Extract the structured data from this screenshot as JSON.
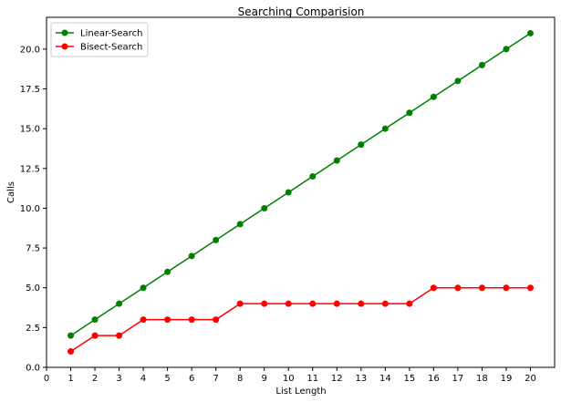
{
  "chart_data": {
    "type": "line",
    "title": "Searching Comparision",
    "xlabel": "List Length",
    "ylabel": "Calls",
    "xlim": [
      0,
      21
    ],
    "ylim": [
      0,
      22
    ],
    "xticks": [
      "0",
      "1",
      "2",
      "3",
      "4",
      "5",
      "6",
      "7",
      "8",
      "9",
      "10",
      "11",
      "12",
      "13",
      "14",
      "15",
      "16",
      "17",
      "18",
      "19",
      "20"
    ],
    "yticks": [
      "0.0",
      "2.5",
      "5.0",
      "7.5",
      "10.0",
      "12.5",
      "15.0",
      "17.5",
      "20.0"
    ],
    "grid": false,
    "legend_position": "upper-left",
    "x": [
      1,
      2,
      3,
      4,
      5,
      6,
      7,
      8,
      9,
      10,
      11,
      12,
      13,
      14,
      15,
      16,
      17,
      18,
      19,
      20
    ],
    "series": [
      {
        "name": "Linear-Search",
        "color": "#008000",
        "marker": "circle",
        "values": [
          2,
          3,
          4,
          5,
          6,
          7,
          8,
          9,
          10,
          11,
          12,
          13,
          14,
          15,
          16,
          17,
          18,
          19,
          20,
          21
        ]
      },
      {
        "name": "Bisect-Search",
        "color": "#ff0000",
        "marker": "circle",
        "values": [
          1,
          2,
          2,
          3,
          3,
          3,
          3,
          4,
          4,
          4,
          4,
          4,
          4,
          4,
          4,
          5,
          5,
          5,
          5,
          5
        ]
      }
    ]
  }
}
